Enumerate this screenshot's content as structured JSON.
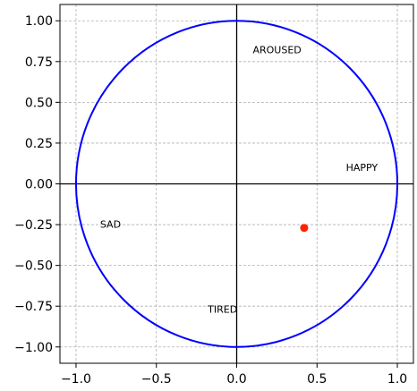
{
  "chart_data": {
    "type": "scatter",
    "title": "",
    "xlabel": "",
    "ylabel": "",
    "xlim": [
      -1.1,
      1.1
    ],
    "ylim": [
      -1.1,
      1.1
    ],
    "grid": true,
    "x_ticks": [
      -1.0,
      -0.5,
      0.0,
      0.5,
      1.0
    ],
    "x_tick_labels": [
      "−1.0",
      "−0.5",
      "0.0",
      "0.5",
      "1.0"
    ],
    "y_ticks": [
      1.0,
      0.75,
      0.5,
      0.25,
      0.0,
      -0.25,
      -0.5,
      -0.75,
      -1.0
    ],
    "y_tick_labels": [
      "1.00",
      "0.75",
      "0.50",
      "0.25",
      "0.00",
      "−0.25",
      "−0.50",
      "−0.75",
      "−1.00"
    ],
    "unit_circle": {
      "center": [
        0,
        0
      ],
      "radius": 1,
      "color": "#0000ff"
    },
    "axes_lines": {
      "color": "#000000"
    },
    "annotations": [
      {
        "text": "AROUSED",
        "x": 0.1,
        "y": 0.8
      },
      {
        "text": "HAPPY",
        "x": 0.68,
        "y": 0.08
      },
      {
        "text": "SAD",
        "x": -0.85,
        "y": -0.27
      },
      {
        "text": "TIRED",
        "x": -0.18,
        "y": -0.79
      }
    ],
    "points": [
      {
        "x": 0.42,
        "y": -0.27,
        "color": "#ff2200"
      }
    ]
  }
}
